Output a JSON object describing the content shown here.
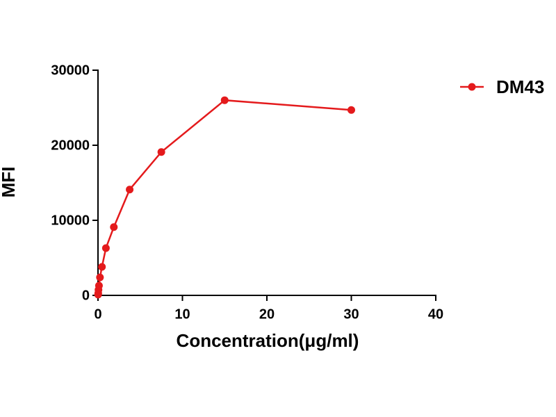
{
  "chart_data": {
    "type": "line",
    "x_label": "Concentration(μg/ml)",
    "y_label": "MFI",
    "series": [
      {
        "name": "DM43",
        "color": "#e41a1c",
        "x": [
          0.0146,
          0.0293,
          0.0586,
          0.117,
          0.234,
          0.469,
          0.938,
          1.875,
          3.75,
          7.5,
          15,
          30
        ],
        "values": [
          100,
          280,
          740,
          1300,
          2400,
          3800,
          6300,
          9100,
          14100,
          19100,
          26000,
          24700
        ]
      }
    ],
    "xlim": [
      0,
      40
    ],
    "xticks": [
      0,
      10,
      20,
      30,
      40
    ],
    "ylim": [
      0,
      30000
    ],
    "yticks": [
      0,
      10000,
      20000,
      30000
    ],
    "grid": false,
    "legend": "right"
  }
}
